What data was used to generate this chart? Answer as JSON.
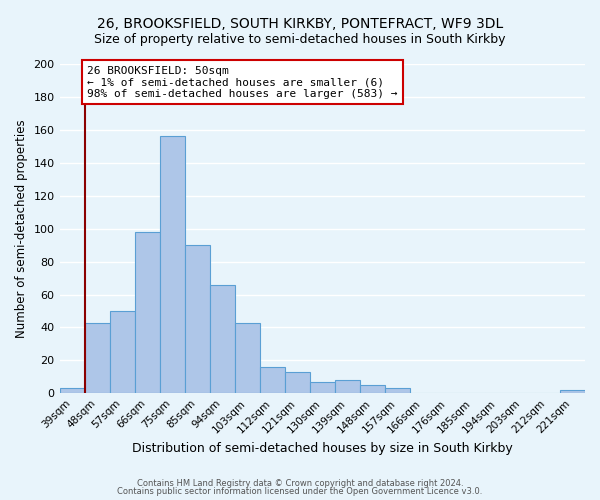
{
  "title": "26, BROOKSFIELD, SOUTH KIRKBY, PONTEFRACT, WF9 3DL",
  "subtitle": "Size of property relative to semi-detached houses in South Kirkby",
  "xlabel": "Distribution of semi-detached houses by size in South Kirkby",
  "ylabel": "Number of semi-detached properties",
  "footer_line1": "Contains HM Land Registry data © Crown copyright and database right 2024.",
  "footer_line2": "Contains public sector information licensed under the Open Government Licence v3.0.",
  "bar_labels": [
    "39sqm",
    "48sqm",
    "57sqm",
    "66sqm",
    "75sqm",
    "85sqm",
    "94sqm",
    "103sqm",
    "112sqm",
    "121sqm",
    "130sqm",
    "139sqm",
    "148sqm",
    "157sqm",
    "166sqm",
    "176sqm",
    "185sqm",
    "194sqm",
    "203sqm",
    "212sqm",
    "221sqm"
  ],
  "bar_values": [
    3,
    43,
    50,
    98,
    156,
    90,
    66,
    43,
    16,
    13,
    7,
    8,
    5,
    3,
    0,
    0,
    0,
    0,
    0,
    0,
    2
  ],
  "bar_color": "#aec6e8",
  "bar_edge_color": "#5a9fd4",
  "highlight_line_color": "#8b0000",
  "annotation_box_edge": "#cc0000",
  "annotation_text_line1": "26 BROOKSFIELD: 50sqm",
  "annotation_text_line2": "← 1% of semi-detached houses are smaller (6)",
  "annotation_text_line3": "98% of semi-detached houses are larger (583) →",
  "ylim": [
    0,
    200
  ],
  "yticks": [
    0,
    20,
    40,
    60,
    80,
    100,
    120,
    140,
    160,
    180,
    200
  ],
  "background_color": "#e8f4fb",
  "grid_color": "#ffffff",
  "title_fontsize": 10,
  "subtitle_fontsize": 9
}
